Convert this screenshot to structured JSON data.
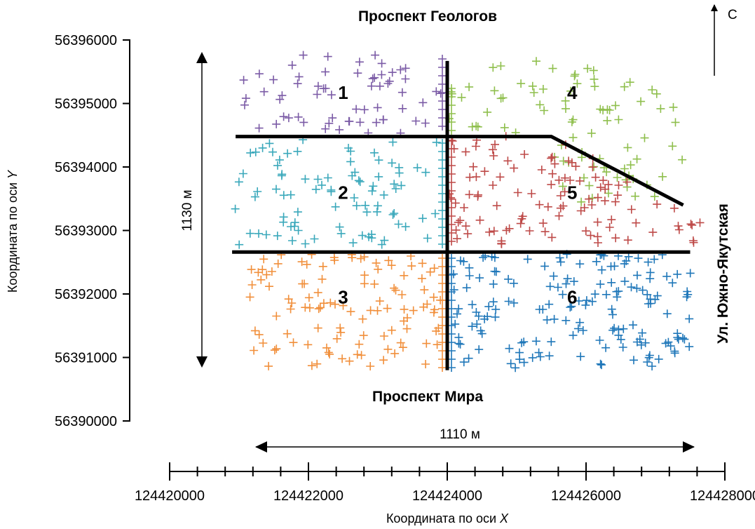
{
  "chart_data": {
    "type": "scatter",
    "title": "",
    "xlabel_prefix": "Координата по оси ",
    "xlabel_var": "X",
    "ylabel_prefix": "Координата по оси ",
    "ylabel_var": "Y",
    "x_ticks": [
      "124420000",
      "124422000",
      "124424000",
      "124426000",
      "124428000"
    ],
    "y_ticks": [
      "56390000",
      "56391000",
      "56392000",
      "56393000",
      "56394000",
      "56395000",
      "56396000"
    ],
    "xlim": [
      124420000,
      124428000
    ],
    "ylim": [
      56390000,
      56396000
    ],
    "north_label": "С",
    "streets": {
      "north": "Проспект Геологов",
      "south": "Проспект Мира",
      "east": "Ул. Южно-Якутская"
    },
    "dimensions": {
      "height_label": "1130 м",
      "width_label": "1110 м"
    },
    "sectors": [
      {
        "label": "1",
        "color": "#7b5ba6",
        "label_at": [
          124422500,
          56395070
        ]
      },
      {
        "label": "2",
        "color": "#3aa8bb",
        "label_at": [
          124422500,
          56393500
        ]
      },
      {
        "label": "3",
        "color": "#f18f3b",
        "label_at": [
          124422500,
          56391850
        ]
      },
      {
        "label": "4",
        "color": "#8fbf4d",
        "label_at": [
          124425800,
          56395070
        ]
      },
      {
        "label": "5",
        "color": "#be4a48",
        "label_at": [
          124425800,
          56393500
        ]
      },
      {
        "label": "6",
        "color": "#1f77b9",
        "label_at": [
          124425800,
          56391850
        ]
      }
    ],
    "boundary_lines": [
      [
        [
          124420950,
          56394480
        ],
        [
          124425500,
          56394480
        ],
        [
          124427400,
          56393400
        ]
      ],
      [
        [
          124424000,
          56395670
        ],
        [
          124424000,
          56390800
        ]
      ],
      [
        [
          124420900,
          56392660
        ],
        [
          124427500,
          56392660
        ]
      ]
    ]
  }
}
